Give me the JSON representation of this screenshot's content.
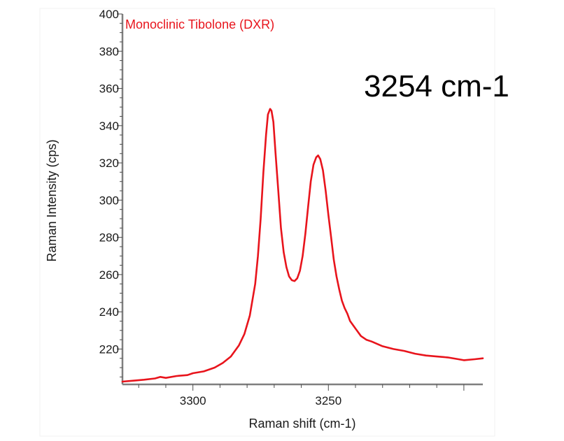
{
  "chart_data": {
    "type": "line",
    "title": "",
    "xlabel": "Raman shift (cm-1)",
    "ylabel": "Raman Intensity (cps)",
    "xlim": [
      3326,
      3193
    ],
    "ylim": [
      201,
      400
    ],
    "x_ticks": [
      {
        "value": 3300,
        "label": "3300"
      },
      {
        "value": 3250,
        "label": "3250"
      }
    ],
    "y_ticks": [
      {
        "value": 220,
        "label": "220"
      },
      {
        "value": 240,
        "label": "240"
      },
      {
        "value": 260,
        "label": "260"
      },
      {
        "value": 280,
        "label": "280"
      },
      {
        "value": 300,
        "label": "300"
      },
      {
        "value": 320,
        "label": "320"
      },
      {
        "value": 340,
        "label": "340"
      },
      {
        "value": 360,
        "label": "360"
      },
      {
        "value": 380,
        "label": "380"
      },
      {
        "value": 400,
        "label": "400"
      }
    ],
    "annotation": "3254 cm-1",
    "series": [
      {
        "name": "Monoclinic Tibolone (DXR)",
        "color": "#e8141c",
        "points": [
          [
            3326,
            202.5
          ],
          [
            3322,
            203.0
          ],
          [
            3318,
            203.5
          ],
          [
            3314,
            204.2
          ],
          [
            3312,
            205.0
          ],
          [
            3310,
            204.5
          ],
          [
            3306,
            205.5
          ],
          [
            3302,
            206.0
          ],
          [
            3300,
            207.0
          ],
          [
            3296,
            208.0
          ],
          [
            3292,
            210.0
          ],
          [
            3289,
            212.5
          ],
          [
            3286,
            216.0
          ],
          [
            3283,
            222.0
          ],
          [
            3281,
            228.0
          ],
          [
            3279,
            238.0
          ],
          [
            3277,
            255.0
          ],
          [
            3276,
            270.0
          ],
          [
            3275,
            290.0
          ],
          [
            3274,
            315.0
          ],
          [
            3273,
            335.0
          ],
          [
            3272.3,
            346.0
          ],
          [
            3271.5,
            349.0
          ],
          [
            3271,
            348.0
          ],
          [
            3270.3,
            342.0
          ],
          [
            3269.5,
            325.0
          ],
          [
            3268.5,
            305.0
          ],
          [
            3267.5,
            285.0
          ],
          [
            3266.5,
            272.0
          ],
          [
            3265.5,
            264.0
          ],
          [
            3264.5,
            259.0
          ],
          [
            3263.5,
            257.0
          ],
          [
            3262.5,
            256.5
          ],
          [
            3261.5,
            258.0
          ],
          [
            3260.5,
            262.0
          ],
          [
            3259.5,
            270.0
          ],
          [
            3258.5,
            282.0
          ],
          [
            3257.5,
            296.0
          ],
          [
            3256.5,
            310.0
          ],
          [
            3255.5,
            319.0
          ],
          [
            3254.5,
            323.0
          ],
          [
            3253.8,
            324.0
          ],
          [
            3253,
            322.0
          ],
          [
            3252,
            316.0
          ],
          [
            3251,
            305.0
          ],
          [
            3250,
            292.0
          ],
          [
            3249,
            280.0
          ],
          [
            3248,
            268.0
          ],
          [
            3247,
            259.0
          ],
          [
            3246,
            252.0
          ],
          [
            3245,
            246.0
          ],
          [
            3244,
            242.0
          ],
          [
            3243,
            239.0
          ],
          [
            3242,
            235.0
          ],
          [
            3240,
            231.0
          ],
          [
            3238,
            227.0
          ],
          [
            3236,
            225.0
          ],
          [
            3234,
            224.0
          ],
          [
            3230,
            221.5
          ],
          [
            3226,
            220.0
          ],
          [
            3222,
            219.0
          ],
          [
            3218,
            217.5
          ],
          [
            3214,
            216.5
          ],
          [
            3210,
            216.0
          ],
          [
            3206,
            215.5
          ],
          [
            3202,
            214.5
          ],
          [
            3200,
            214.0
          ],
          [
            3196,
            214.5
          ],
          [
            3193,
            215.0
          ]
        ]
      }
    ]
  }
}
